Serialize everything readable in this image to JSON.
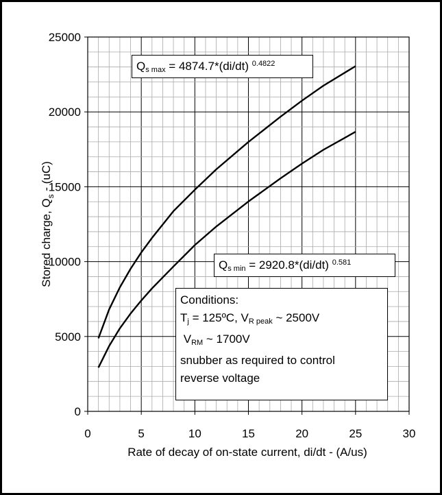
{
  "chart_data": {
    "type": "line",
    "title": "",
    "xlabel": "Rate of decay of on-state current, di/dt - (A/us)",
    "ylabel": {
      "main": "Stored charge, Q",
      "sub": "s",
      "tail": " - (uC)"
    },
    "xlim": [
      0,
      30
    ],
    "ylim": [
      0,
      25000
    ],
    "x_ticks": [
      "0",
      "5",
      "10",
      "15",
      "20",
      "25",
      "30"
    ],
    "y_ticks": [
      "0",
      "5000",
      "10000",
      "15000",
      "20000",
      "25000"
    ],
    "grid": true,
    "series": [
      {
        "x": [
          1,
          2,
          3,
          4,
          5,
          6,
          8,
          10,
          12,
          15,
          18,
          20,
          22,
          25
        ],
        "values": [
          4875,
          6814,
          8282,
          9520,
          10612,
          11583,
          13370,
          14798,
          16165,
          17990,
          19679,
          20749,
          21747,
          23053
        ],
        "color": "#000000"
      },
      {
        "x": [
          1,
          2,
          3,
          4,
          5,
          6,
          8,
          10,
          12,
          15,
          18,
          20,
          22,
          25
        ],
        "values": [
          2921,
          4368,
          5543,
          6530,
          7405,
          8211,
          9677,
          11105,
          12344,
          14016,
          15565,
          16546,
          17468,
          18674
        ],
        "color": "#000000"
      }
    ],
    "annotations": {
      "qmax": {
        "q": "Q",
        "sub": "s max",
        "text": " = 4874.7*(di/dt)",
        "sup": "0.4822"
      },
      "qmin": {
        "q": "Q",
        "sub": "s min",
        "text": " = 2920.8*(di/dt)",
        "sup": "0.581"
      },
      "conditions": {
        "title": "Conditions:",
        "tj_t": "T",
        "tj_sub": "j",
        "tj_text": " = 125ºC, V",
        "vr_sub": "R peak",
        "vr_text": " ~ 2500V",
        "vrm_t": "V",
        "vrm_sub": "RM",
        "vrm_text": " ~ 1700V",
        "line3": "snubber as required to control",
        "line4": "reverse voltage"
      }
    }
  }
}
